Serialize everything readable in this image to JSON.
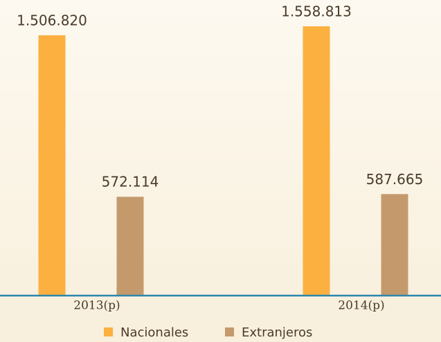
{
  "chart_data": {
    "type": "bar",
    "categories": [
      "2013(p)",
      "2014(p)"
    ],
    "series": [
      {
        "name": "Nacionales",
        "color": "#fbb040",
        "values": [
          1506820,
          1558813
        ],
        "value_labels": [
          "1.506.820",
          "1.558.813"
        ]
      },
      {
        "name": "Extranjeros",
        "color": "#c49a6c",
        "values": [
          572114,
          587665
        ],
        "value_labels": [
          "572.114",
          "587.665"
        ]
      }
    ]
  }
}
